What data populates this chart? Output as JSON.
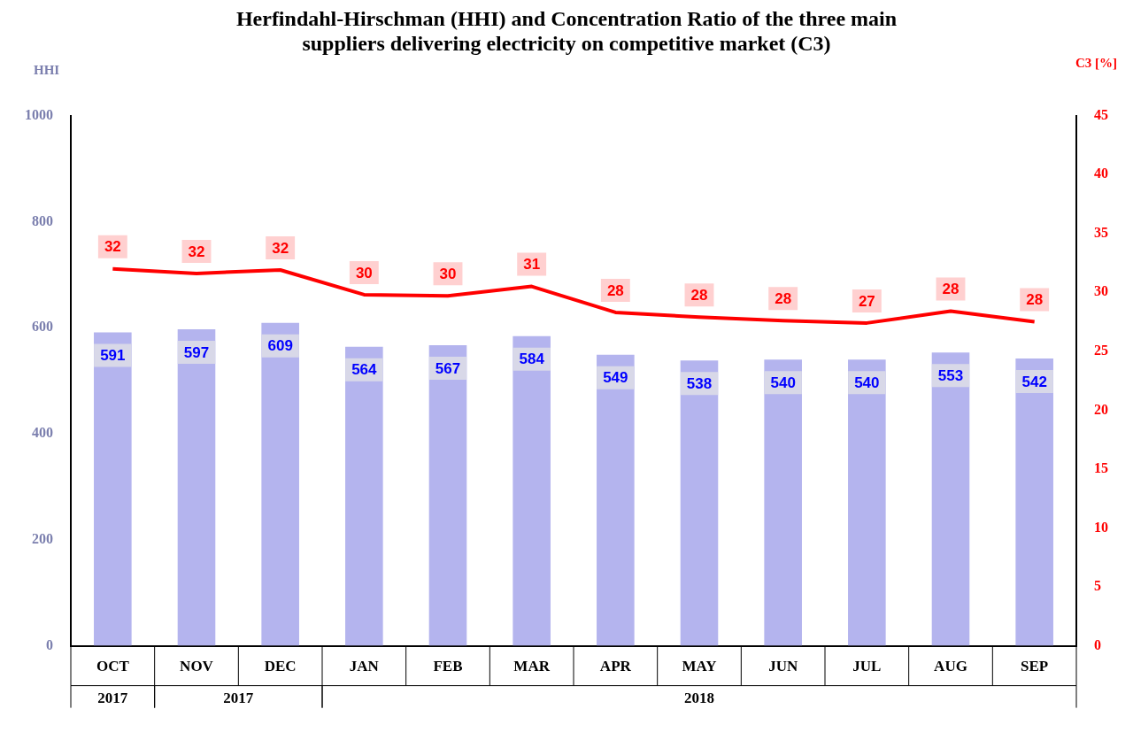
{
  "chart_data": {
    "type": "bar",
    "title": "Herfindahl-Hirschman (HHI) and Concentration Ratio of the three main suppliers delivering electricity on competitive market (C3)",
    "categories": [
      "OCT",
      "NOV",
      "DEC",
      "JAN",
      "FEB",
      "MAR",
      "APR",
      "MAY",
      "JUN",
      "JUL",
      "AUG",
      "SEP"
    ],
    "series": [
      {
        "color": "#b4b4ee",
        "values": [
          591,
          597,
          609,
          564,
          567,
          584,
          549,
          538,
          540,
          540,
          553,
          542
        ],
        "value_labels": [
          "591",
          "597",
          "609",
          "564",
          "567",
          "584",
          "549",
          "538",
          "540",
          "540",
          "553",
          "542"
        ]
      },
      {
        "type": "line",
        "axis": "y2",
        "color": "#ff0000",
        "values": [
          32,
          31.6,
          31.9,
          29.8,
          29.7,
          30.5,
          28.3,
          27.9,
          27.6,
          27.4,
          28.4,
          27.5
        ],
        "value_labels": [
          "32",
          "32",
          "32",
          "30",
          "30",
          "31",
          "28",
          "28",
          "28",
          "27",
          "28",
          "28"
        ]
      }
    ],
    "ylabel": "HHI",
    "y2label": "C3 [%]",
    "ylim": [
      0,
      1000
    ],
    "yticks": [
      0,
      200,
      400,
      600,
      800,
      1000
    ],
    "y2lim": [
      0,
      45
    ],
    "y2ticks": [
      0,
      5,
      10,
      15,
      20,
      25,
      30,
      35,
      40,
      45
    ],
    "annotations": [
      "2017",
      "2017",
      "2018"
    ],
    "grid": false,
    "legend": false,
    "marker": "none",
    "line_style": "solid"
  }
}
